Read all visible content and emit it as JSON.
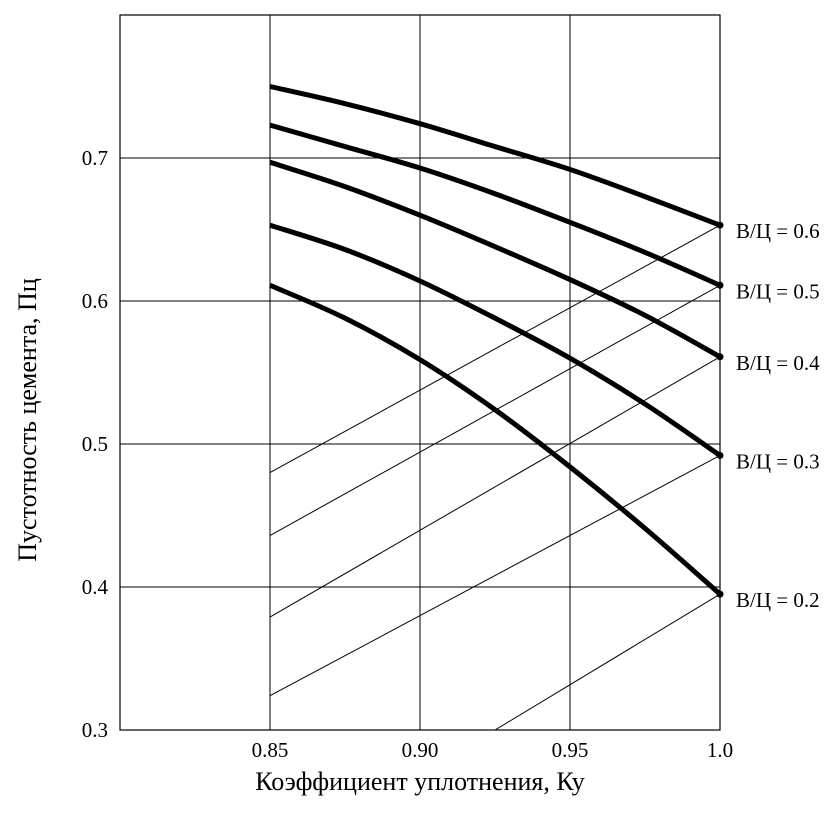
{
  "chart_data": {
    "type": "line",
    "xlabel": "Коэффициент уплотнения, Ку",
    "ylabel": "Пустотность цемента, Пц",
    "xlim": [
      0.8,
      1.0
    ],
    "ylim": [
      0.3,
      0.8
    ],
    "x_ticks": [
      {
        "value": 0.85,
        "label": "0.85"
      },
      {
        "value": 0.9,
        "label": "0.90"
      },
      {
        "value": 0.95,
        "label": "0.95"
      },
      {
        "value": 1.0,
        "label": "1.0"
      }
    ],
    "y_ticks": [
      {
        "value": 0.3,
        "label": "0.3"
      },
      {
        "value": 0.4,
        "label": "0.4"
      },
      {
        "value": 0.5,
        "label": "0.5"
      },
      {
        "value": 0.6,
        "label": "0.6"
      },
      {
        "value": 0.7,
        "label": "0.7"
      }
    ],
    "grid": true,
    "series": [
      {
        "name": "В/Ц = 0.6",
        "x": [
          0.85,
          0.875,
          0.9,
          0.925,
          0.95,
          0.975,
          1.0
        ],
        "y": [
          0.75,
          0.738,
          0.724,
          0.708,
          0.692,
          0.673,
          0.653
        ]
      },
      {
        "name": "В/Ц = 0.5",
        "x": [
          0.85,
          0.875,
          0.9,
          0.925,
          0.95,
          0.975,
          1.0
        ],
        "y": [
          0.723,
          0.708,
          0.693,
          0.675,
          0.655,
          0.634,
          0.611
        ]
      },
      {
        "name": "В/Ц = 0.4",
        "x": [
          0.85,
          0.875,
          0.9,
          0.925,
          0.95,
          0.975,
          1.0
        ],
        "y": [
          0.697,
          0.68,
          0.66,
          0.638,
          0.615,
          0.59,
          0.561
        ]
      },
      {
        "name": "В/Ц = 0.3",
        "x": [
          0.85,
          0.875,
          0.9,
          0.925,
          0.95,
          0.975,
          1.0
        ],
        "y": [
          0.653,
          0.636,
          0.614,
          0.588,
          0.56,
          0.528,
          0.492
        ]
      },
      {
        "name": "В/Ц = 0.2",
        "x": [
          0.85,
          0.875,
          0.9,
          0.925,
          0.95,
          0.975,
          1.0
        ],
        "y": [
          0.611,
          0.588,
          0.559,
          0.524,
          0.484,
          0.441,
          0.395
        ]
      }
    ],
    "reference_lines": [
      {
        "x": [
          0.85,
          1.0
        ],
        "y": [
          0.48,
          0.653
        ]
      },
      {
        "x": [
          0.85,
          1.0
        ],
        "y": [
          0.436,
          0.611
        ]
      },
      {
        "x": [
          0.85,
          1.0
        ],
        "y": [
          0.379,
          0.561
        ]
      },
      {
        "x": [
          0.85,
          1.0
        ],
        "y": [
          0.324,
          0.492
        ]
      },
      {
        "x": [
          0.925,
          1.0
        ],
        "y": [
          0.3,
          0.395
        ]
      }
    ]
  }
}
